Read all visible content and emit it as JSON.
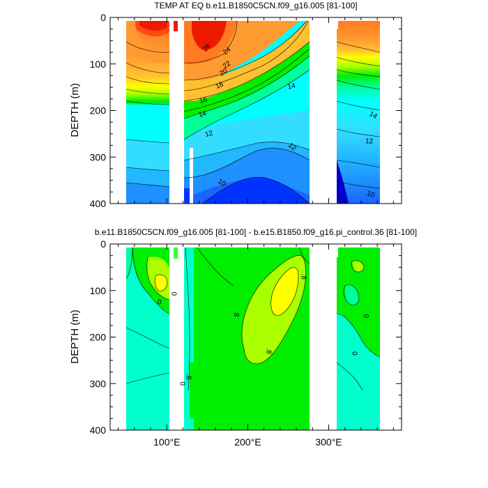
{
  "palette": {
    "red": "#ee1a00",
    "red_orange": "#ff4a10",
    "orange": "#ff7a20",
    "light_orange": "#ff9a30",
    "yellow_orange": "#ffc030",
    "yellow": "#ffff00",
    "lime": "#aaff00",
    "green": "#00ee00",
    "bright_green": "#33ff33",
    "spring_green": "#00ff99",
    "aquamarine": "#00ffcc",
    "cyan": "#00ffff",
    "sky": "#33ddff",
    "light_blue": "#22b8ff",
    "blue": "#1e90ff",
    "mid_blue": "#1c64ff",
    "deep_blue": "#0033ff",
    "navy": "#0000cc",
    "land": "#ffffff"
  },
  "chart_data": [
    {
      "type": "contour",
      "title": "TEMP AT EQ b.e11.B1850C5CN.f09_g16.005 [81-100]",
      "ylabel": "DEPTH (m)",
      "ylim": [
        0,
        400
      ],
      "y_reversed": true,
      "yticks": [
        "0",
        "100",
        "200",
        "300",
        "400"
      ],
      "xlim": [
        30,
        390
      ],
      "contour_labels": [
        {
          "text": "26",
          "lon": 149,
          "depth": 65,
          "rot": -50
        },
        {
          "text": "24",
          "lon": 174,
          "depth": 72,
          "rot": -40
        },
        {
          "text": "22",
          "lon": 174,
          "depth": 102,
          "rot": -35
        },
        {
          "text": "20",
          "lon": 170,
          "depth": 118,
          "rot": -30
        },
        {
          "text": "18",
          "lon": 165,
          "depth": 146,
          "rot": -25
        },
        {
          "text": "16",
          "lon": 145,
          "depth": 178,
          "rot": -15
        },
        {
          "text": "14",
          "lon": 144,
          "depth": 208,
          "rot": -15
        },
        {
          "text": "14",
          "lon": 254,
          "depth": 148,
          "rot": -10
        },
        {
          "text": "12",
          "lon": 152,
          "depth": 250,
          "rot": -15
        },
        {
          "text": "12",
          "lon": 255,
          "depth": 278,
          "rot": 40
        },
        {
          "text": "10",
          "lon": 168,
          "depth": 355,
          "rot": 30
        },
        {
          "text": "14",
          "lon": 355,
          "depth": 210,
          "rot": 30
        },
        {
          "text": "12",
          "lon": 350,
          "depth": 266,
          "rot": 0
        },
        {
          "text": "10",
          "lon": 352,
          "depth": 380,
          "rot": 20
        }
      ]
    },
    {
      "type": "contour",
      "title": "b.e11.B1850C5CN.f09_g16.005 [81-100] - b.e15.B1850.f09_g16.pi_control.36 [81-100]",
      "ylabel": "DEPTH (m)",
      "ylim": [
        0,
        400
      ],
      "y_reversed": true,
      "yticks": [
        "0",
        "100",
        "200",
        "300",
        "400"
      ],
      "xticks": [
        {
          "lon": 100,
          "label": "100°E"
        },
        {
          "lon": 200,
          "label": "200°E"
        },
        {
          "lon": 300,
          "label": "300°E"
        }
      ],
      "xlim": [
        30,
        390
      ],
      "contour_labels": [
        {
          "text": "0",
          "lon": 91,
          "depth": 125,
          "rot": 0
        },
        {
          "text": "0",
          "lon": 109,
          "depth": 107,
          "rot": 90
        },
        {
          "text": "0",
          "lon": 119,
          "depth": 300,
          "rot": 90
        },
        {
          "text": ".8",
          "lon": 127,
          "depth": 285,
          "rot": 90
        },
        {
          "text": ".8",
          "lon": 269,
          "depth": 70,
          "rot": 90
        },
        {
          "text": ".8",
          "lon": 186,
          "depth": 150,
          "rot": 90
        },
        {
          "text": ".8",
          "lon": 226,
          "depth": 230,
          "rot": 90
        },
        {
          "text": "0",
          "lon": 346,
          "depth": 155,
          "rot": 90
        },
        {
          "text": "0",
          "lon": 332,
          "depth": 235,
          "rot": 90
        }
      ]
    }
  ]
}
